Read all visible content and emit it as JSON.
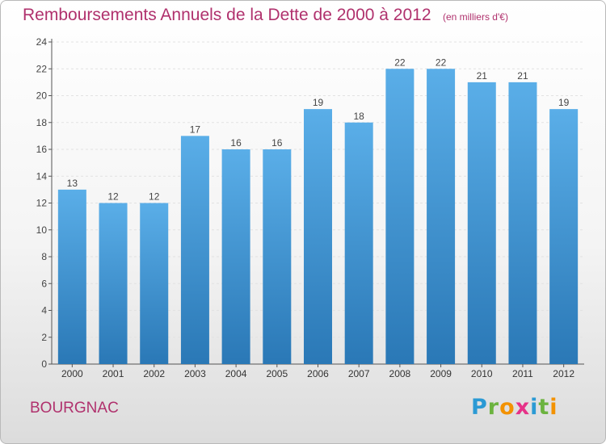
{
  "title": {
    "main": "Remboursements Annuels de la Dette de 2000 à 2012",
    "unit": "(en milliers d'€)"
  },
  "commune": "BOURGNAC",
  "brand": {
    "letters": [
      "P",
      "r",
      "o",
      "x",
      "i",
      "t",
      "i"
    ],
    "colors": [
      "#2b9ad4",
      "#6cb33f",
      "#f39200",
      "#e63288",
      "#2b9ad4",
      "#6cb33f",
      "#f39200"
    ]
  },
  "colors": {
    "bar_top": "#5aaee8",
    "bar_bottom": "#2a78b6",
    "axis": "#555555",
    "grid": "#e2e2e2",
    "title": "#b0316d"
  },
  "chart_data": {
    "type": "bar",
    "categories": [
      "2000",
      "2001",
      "2002",
      "2003",
      "2004",
      "2005",
      "2006",
      "2007",
      "2008",
      "2009",
      "2010",
      "2011",
      "2012"
    ],
    "values": [
      13,
      12,
      12,
      17,
      16,
      16,
      19,
      18,
      22,
      22,
      21,
      21,
      19
    ],
    "data_labels": [
      "13",
      "12",
      "12",
      "17",
      "16",
      "16",
      "19",
      "18",
      "22",
      "22",
      "21",
      "21",
      "19"
    ],
    "ylim": [
      0,
      24
    ],
    "yticks": [
      0,
      2,
      4,
      6,
      8,
      10,
      12,
      14,
      16,
      18,
      20,
      22,
      24
    ],
    "grid": true,
    "legend": "none",
    "xlabel": "",
    "ylabel": ""
  }
}
